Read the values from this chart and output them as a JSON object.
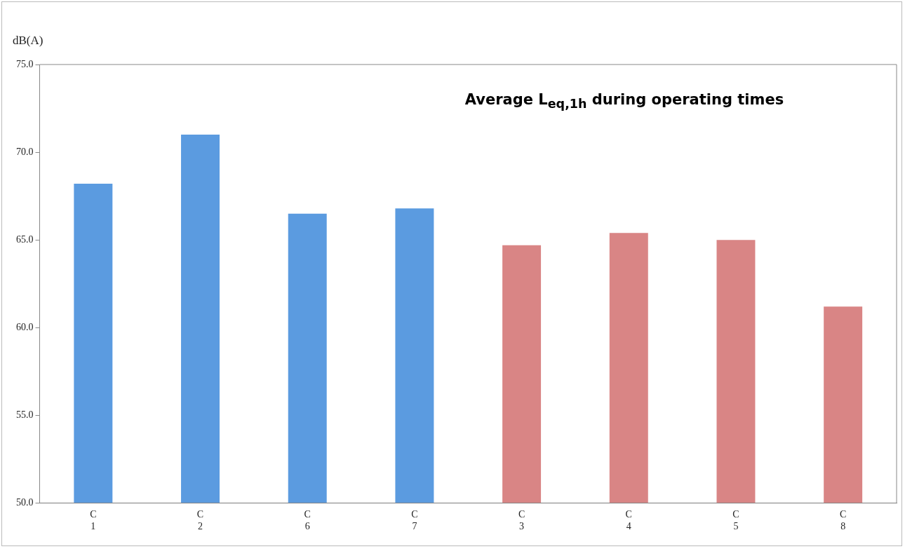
{
  "chart_data": {
    "type": "bar",
    "title": "Average L$_{eq,1h}$ during operating times",
    "ylabel": "dB(A)",
    "categories": [
      "C\n1",
      "C\n2",
      "C\n6",
      "C\n7",
      "C\n3",
      "C\n4",
      "C\n5",
      "C\n8"
    ],
    "values": [
      68.2,
      71.0,
      66.5,
      66.8,
      64.7,
      65.4,
      65.0,
      61.2
    ],
    "colors": [
      "#5b9be0",
      "#5b9be0",
      "#5b9be0",
      "#5b9be0",
      "#d98585",
      "#d98585",
      "#d98585",
      "#d98585"
    ],
    "ylim": [
      50,
      75
    ],
    "yticks": [
      {
        "value": 50,
        "label": "50.0"
      },
      {
        "value": 55,
        "label": "55.0"
      },
      {
        "value": 60,
        "label": "60.0"
      },
      {
        "value": 65,
        "label": "65.0"
      },
      {
        "value": 70,
        "label": "70.0"
      },
      {
        "value": 75,
        "label": "75.0"
      }
    ],
    "grid": false,
    "legend": false
  }
}
